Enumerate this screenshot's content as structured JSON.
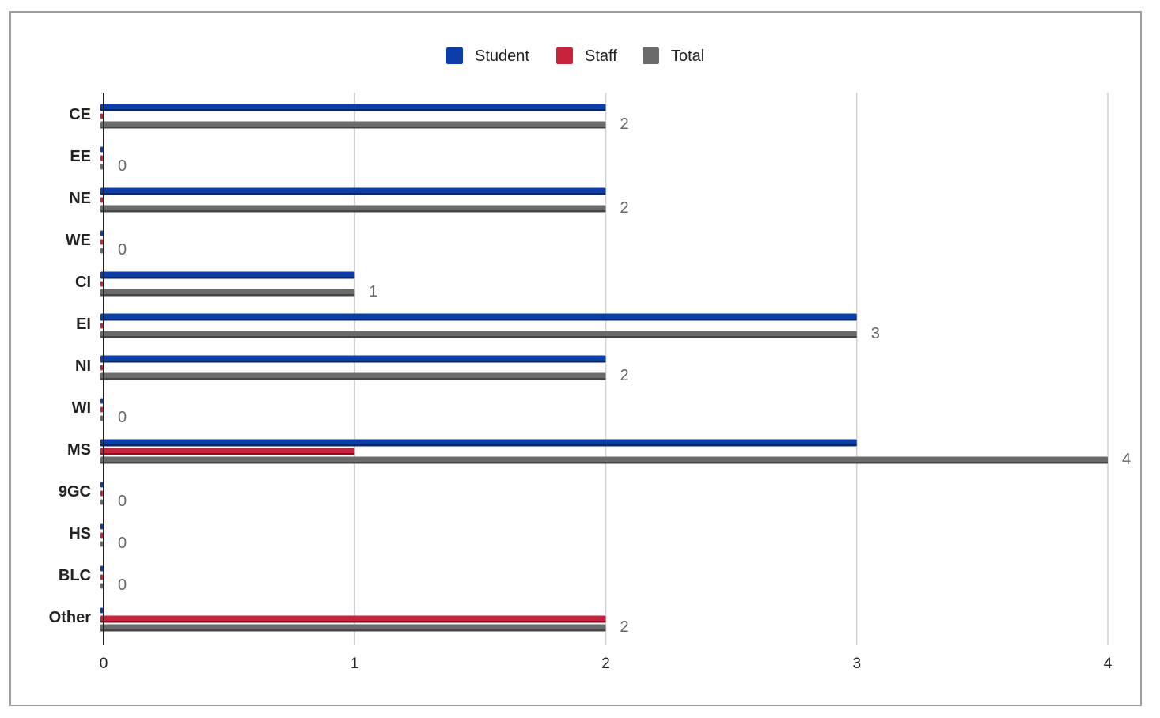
{
  "chart_data": {
    "type": "bar",
    "orientation": "horizontal",
    "categories": [
      "CE",
      "EE",
      "NE",
      "WE",
      "CI",
      "EI",
      "NI",
      "WI",
      "MS",
      "9GC",
      "HS",
      "BLC",
      "Other"
    ],
    "series": [
      {
        "name": "Student",
        "color": "#0b3ea8",
        "values": [
          2,
          0,
          2,
          0,
          1,
          3,
          2,
          0,
          3,
          0,
          0,
          0,
          0
        ]
      },
      {
        "name": "Staff",
        "color": "#c8233c",
        "values": [
          0,
          0,
          0,
          0,
          0,
          0,
          0,
          0,
          1,
          0,
          0,
          0,
          2
        ]
      },
      {
        "name": "Total",
        "color": "#6b6b6b",
        "values": [
          2,
          0,
          2,
          0,
          1,
          3,
          2,
          0,
          4,
          0,
          0,
          0,
          2
        ]
      }
    ],
    "data_labels": [
      "2",
      "0",
      "2",
      "0",
      "1",
      "3",
      "2",
      "0",
      "4",
      "0",
      "0",
      "0",
      "2"
    ],
    "xlim": [
      0,
      4
    ],
    "x_ticks": [
      "0",
      "1",
      "2",
      "3",
      "4"
    ],
    "grid": true,
    "legend_position": "top-center",
    "title": "",
    "xlabel": "",
    "ylabel": ""
  }
}
